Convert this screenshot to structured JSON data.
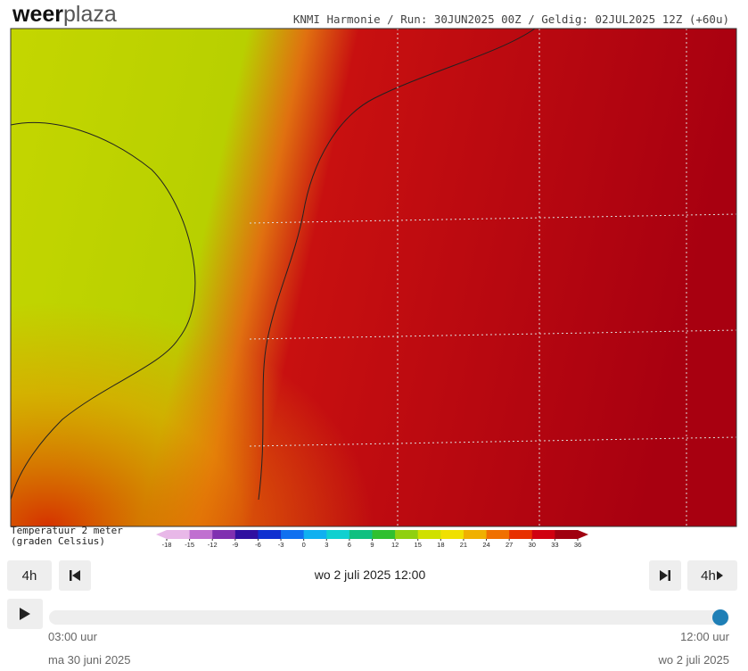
{
  "header": {
    "logo_left": "weer",
    "logo_right": "plaza",
    "info": "KNMI Harmonie / Run: 30JUN2025 00Z / Geldig: 02JUL2025 12Z (+60u)"
  },
  "legend": {
    "title_line1": "Temperatuur 2 meter",
    "title_line2": "(graden Celsius)",
    "ticks": [
      -18,
      -15,
      -12,
      -9,
      -6,
      -3,
      0,
      3,
      6,
      9,
      12,
      15,
      18,
      21,
      24,
      27,
      30,
      33,
      36
    ],
    "colors": [
      "#e8b8e8",
      "#c070d0",
      "#8030b0",
      "#3010a0",
      "#1030d0",
      "#1070f0",
      "#10b0f0",
      "#10d0d0",
      "#10c080",
      "#30c030",
      "#90d010",
      "#d0e000",
      "#f0e000",
      "#f0b000",
      "#f07000",
      "#e83000",
      "#d00010",
      "#a00010"
    ]
  },
  "controls": {
    "step_back": "4h",
    "step_forward": "4h",
    "current_time": "wo 2 juli 2025 12:00",
    "start_time": "03:00 uur",
    "end_time": "12:00 uur",
    "start_date": "ma 30 juni 2025",
    "end_date": "wo 2 juli 2025"
  }
}
